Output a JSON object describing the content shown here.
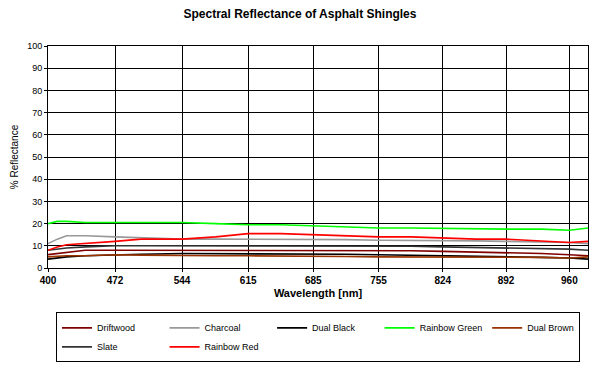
{
  "chart_data": {
    "type": "line",
    "title": "Spectral Reflectance of Asphalt Shingles",
    "x_label": "Wavelength [nm]",
    "y_label": "% Reflectance",
    "x": [
      400,
      410,
      420,
      440,
      472,
      500,
      544,
      580,
      615,
      650,
      685,
      720,
      755,
      790,
      824,
      860,
      892,
      930,
      960,
      980
    ],
    "series": [
      {
        "name": "Driftwood",
        "color": "#800000",
        "values": [
          6,
          6.5,
          7,
          8,
          8,
          8,
          8,
          8,
          8,
          8,
          8,
          8,
          8,
          7.8,
          7.5,
          7.2,
          7,
          6.5,
          6,
          5.5
        ]
      },
      {
        "name": "Charcoal",
        "color": "#999999",
        "values": [
          11,
          13,
          14.5,
          14.5,
          14,
          13.5,
          13,
          13,
          13,
          13,
          13,
          12.8,
          12.5,
          12.5,
          12.5,
          12.2,
          12,
          11.8,
          11.5,
          11
        ]
      },
      {
        "name": "Dual Black",
        "color": "#000000",
        "values": [
          4,
          4.5,
          5,
          5.5,
          6,
          6.2,
          6.5,
          6.5,
          6.5,
          6.5,
          6.5,
          6.2,
          6,
          5.8,
          5.5,
          5.2,
          5,
          4.8,
          4.5,
          4
        ]
      },
      {
        "name": "Rainbow Green",
        "color": "#00ff00",
        "values": [
          20,
          21,
          21,
          20.5,
          20.5,
          20.5,
          20.5,
          20,
          19.5,
          19.5,
          19,
          18.5,
          18,
          18,
          17.8,
          17.5,
          17.5,
          17.5,
          17,
          18
        ]
      },
      {
        "name": "Dual Brown",
        "color": "#993300",
        "values": [
          5,
          5.2,
          5.5,
          5.5,
          6,
          5.8,
          5.5,
          5.5,
          5.5,
          5.5,
          5.5,
          5.2,
          5,
          5,
          5,
          5,
          5,
          4.8,
          4.5,
          5
        ]
      },
      {
        "name": "Slate",
        "color": "#333333",
        "values": [
          8,
          8.5,
          9,
          9.5,
          10,
          10,
          10,
          10,
          10,
          10,
          10,
          10,
          10,
          9.8,
          9.5,
          9.2,
          9,
          8.8,
          8.5,
          8
        ]
      },
      {
        "name": "Rainbow Red",
        "color": "#ff0000",
        "values": [
          8,
          9.5,
          10.5,
          11,
          12,
          13,
          13,
          14,
          15.5,
          15.5,
          15,
          14.5,
          14,
          14,
          13.5,
          13,
          13,
          12,
          11.5,
          12
        ]
      }
    ],
    "xlim": [
      400,
      980
    ],
    "xticks": [
      400,
      472,
      544,
      615,
      685,
      755,
      824,
      892,
      960
    ],
    "ylim": [
      0,
      100
    ],
    "yticks": [
      0,
      10,
      20,
      30,
      40,
      50,
      60,
      70,
      80,
      90,
      100
    ],
    "grid": true,
    "legend": "bottom"
  }
}
